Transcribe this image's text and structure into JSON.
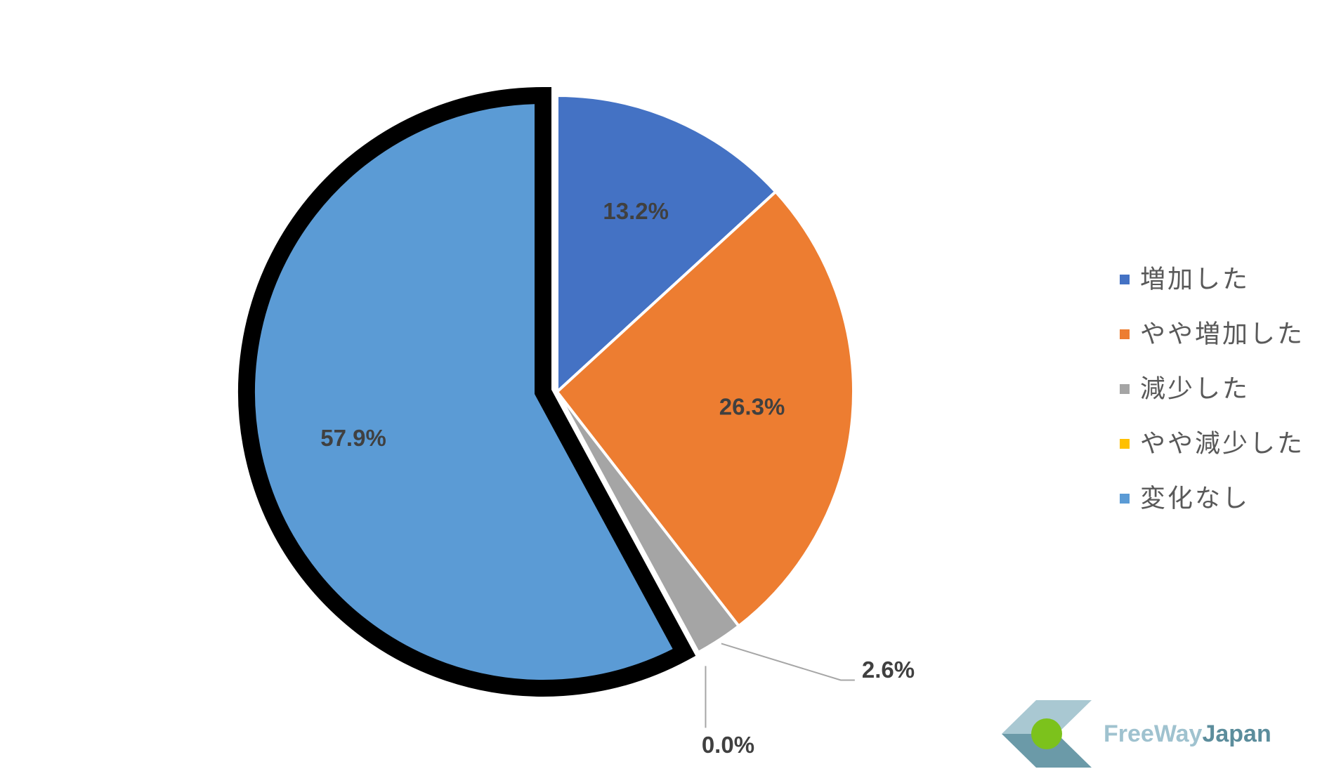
{
  "chart_data": {
    "type": "pie",
    "categories": [
      "増加した",
      "やや増加した",
      "減少した",
      "やや減少した",
      "変化なし"
    ],
    "values": [
      13.2,
      26.3,
      2.6,
      0.0,
      57.9
    ],
    "value_labels": [
      "13.2%",
      "26.3%",
      "2.6%",
      "0.0%",
      "57.9%"
    ],
    "colors": [
      "#4472c4",
      "#ed7d31",
      "#a5a5a5",
      "#ffc000",
      "#5b9bd5"
    ],
    "highlight": 4,
    "legend": "right"
  },
  "logo": [
    "FreeWay",
    "Japan"
  ]
}
